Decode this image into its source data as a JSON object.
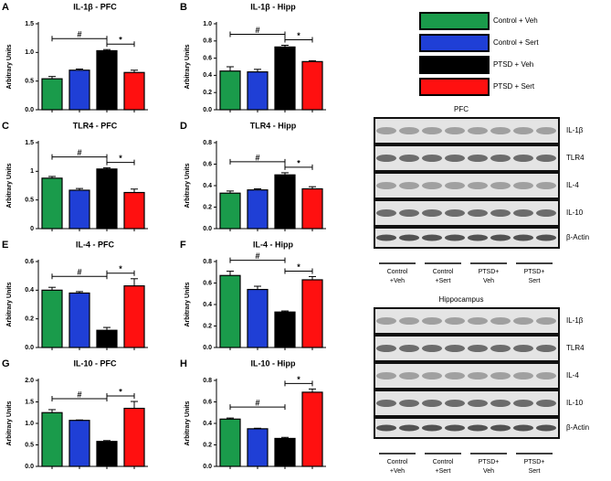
{
  "chart_data": [
    {
      "type": "bar",
      "panel": "A",
      "title": "IL-1β - PFC",
      "ylabel": "Arbitrary Units",
      "categories": [
        null,
        null,
        null,
        null
      ],
      "values": [
        0.54,
        0.69,
        1.03,
        0.65
      ],
      "errors": [
        0.04,
        0.02,
        0.02,
        0.04
      ],
      "colors": [
        "#1a9b4b",
        "#1f3fd6",
        "#000000",
        "#ff1010"
      ],
      "ylim": [
        0,
        1.5
      ],
      "yticks": [
        {
          "value": 0,
          "label": "0.0"
        },
        0.5,
        {
          "value": 1,
          "label": "1.0"
        },
        1.5
      ],
      "annotations": [
        "#",
        "*"
      ]
    },
    {
      "type": "bar",
      "panel": "B",
      "title": "IL-1β - Hipp",
      "ylabel": "Arbitrary Units",
      "categories": [
        null,
        null,
        null,
        null
      ],
      "values": [
        0.45,
        0.44,
        0.73,
        0.56
      ],
      "errors": [
        0.05,
        0.03,
        0.02,
        0.01
      ],
      "colors": [
        "#1a9b4b",
        "#1f3fd6",
        "#000000",
        "#ff1010"
      ],
      "ylim": [
        0,
        1
      ],
      "yticks": [
        {
          "value": 0,
          "label": "0.0"
        },
        0.2,
        0.4,
        0.6,
        0.8,
        {
          "value": 1,
          "label": "1.0"
        }
      ],
      "annotations": [
        "#",
        "*"
      ]
    },
    {
      "type": "bar",
      "panel": "C",
      "title": "TLR4 - PFC",
      "ylabel": "Arbitrary Units",
      "categories": [
        null,
        null,
        null,
        null
      ],
      "values": [
        0.88,
        0.67,
        1.04,
        0.63
      ],
      "errors": [
        0.03,
        0.03,
        0.02,
        0.06
      ],
      "colors": [
        "#1a9b4b",
        "#1f3fd6",
        "#000000",
        "#ff1010"
      ],
      "ylim": [
        0,
        1.5
      ],
      "yticks": [
        0,
        0.5,
        1,
        1.5
      ],
      "annotations": [
        "#",
        "*"
      ]
    },
    {
      "type": "bar",
      "panel": "D",
      "title": "TLR4 - Hipp",
      "ylabel": "Arbitrary Units",
      "categories": [
        null,
        null,
        null,
        null
      ],
      "values": [
        0.33,
        0.36,
        0.5,
        0.37
      ],
      "errors": [
        0.02,
        0.01,
        0.02,
        0.02
      ],
      "colors": [
        "#1a9b4b",
        "#1f3fd6",
        "#000000",
        "#ff1010"
      ],
      "ylim": [
        0,
        0.8
      ],
      "yticks": [
        {
          "value": 0,
          "label": "0.0"
        },
        0.2,
        0.4,
        0.6,
        0.8
      ],
      "annotations": [
        "#",
        "*"
      ]
    },
    {
      "type": "bar",
      "panel": "E",
      "title": "IL-4 - PFC",
      "ylabel": "Arbitrary Units",
      "categories": [
        null,
        null,
        null,
        null
      ],
      "values": [
        0.4,
        0.38,
        0.12,
        0.43
      ],
      "errors": [
        0.02,
        0.01,
        0.02,
        0.05
      ],
      "colors": [
        "#1a9b4b",
        "#1f3fd6",
        "#000000",
        "#ff1010"
      ],
      "ylim": [
        0,
        0.6
      ],
      "yticks": [
        {
          "value": 0,
          "label": "0.0"
        },
        0.2,
        0.4,
        0.6
      ],
      "annotations": [
        "#",
        "*"
      ]
    },
    {
      "type": "bar",
      "panel": "F",
      "title": "IL-4 - Hipp",
      "ylabel": "Arbitrary Units",
      "categories": [
        null,
        null,
        null,
        null
      ],
      "values": [
        0.67,
        0.54,
        0.33,
        0.63
      ],
      "errors": [
        0.04,
        0.03,
        0.01,
        0.03
      ],
      "colors": [
        "#1a9b4b",
        "#1f3fd6",
        "#000000",
        "#ff1010"
      ],
      "ylim": [
        0,
        0.8
      ],
      "yticks": [
        {
          "value": 0,
          "label": "0.0"
        },
        0.2,
        0.4,
        0.6,
        0.8
      ],
      "annotations": [
        "#",
        "*"
      ]
    },
    {
      "type": "bar",
      "panel": "G",
      "title": "IL-10 - PFC",
      "ylabel": "Arbitrary Units",
      "categories": [
        null,
        null,
        null,
        null
      ],
      "values": [
        1.25,
        1.07,
        0.58,
        1.35
      ],
      "errors": [
        0.07,
        0.01,
        0.02,
        0.16
      ],
      "colors": [
        "#1a9b4b",
        "#1f3fd6",
        "#000000",
        "#ff1010"
      ],
      "ylim": [
        0,
        2
      ],
      "yticks": [
        {
          "value": 0,
          "label": "0.0"
        },
        0.5,
        {
          "value": 1,
          "label": "1.0"
        },
        1.5,
        {
          "value": 2,
          "label": "2.0"
        }
      ],
      "annotations": [
        "#",
        "*"
      ]
    },
    {
      "type": "bar",
      "panel": "H",
      "title": "IL-10 - Hipp",
      "ylabel": "Arbitrary Units",
      "categories": [
        null,
        null,
        null,
        null
      ],
      "values": [
        0.44,
        0.35,
        0.26,
        0.69
      ],
      "errors": [
        0.01,
        0.005,
        0.01,
        0.03
      ],
      "colors": [
        "#1a9b4b",
        "#1f3fd6",
        "#000000",
        "#ff1010"
      ],
      "ylim": [
        0,
        0.8
      ],
      "yticks": [
        {
          "value": 0,
          "label": "0.0"
        },
        0.2,
        0.4,
        0.6,
        0.8
      ],
      "annotations": [
        "#",
        "*"
      ]
    }
  ],
  "legend": [
    {
      "name": "Control + Veh",
      "color": "#1a9b4b"
    },
    {
      "name": "Control + Sert",
      "color": "#1f3fd6"
    },
    {
      "name": "PTSD + Veh",
      "color": "#000000"
    },
    {
      "name": "PTSD + Sert",
      "color": "#ff1010"
    }
  ],
  "blots": [
    {
      "title": "PFC",
      "bands": [
        "IL-1β",
        "TLR4",
        "IL-4",
        "IL-10",
        "β-Actin"
      ],
      "lanes": [
        [
          "Control",
          "+Veh"
        ],
        [
          "Control",
          "+Sert"
        ],
        [
          "PTSD+",
          "Veh"
        ],
        [
          "PTSD+",
          "Sert"
        ]
      ]
    },
    {
      "title": "Hippocampus",
      "bands": [
        "IL-1β",
        "TLR4",
        "IL-4",
        "IL-10",
        "β-Actin"
      ],
      "lanes": [
        [
          "Control",
          "+Veh"
        ],
        [
          "Control",
          "+Sert"
        ],
        [
          "PTSD+",
          "Veh"
        ],
        [
          "PTSD+",
          "Sert"
        ]
      ]
    }
  ]
}
